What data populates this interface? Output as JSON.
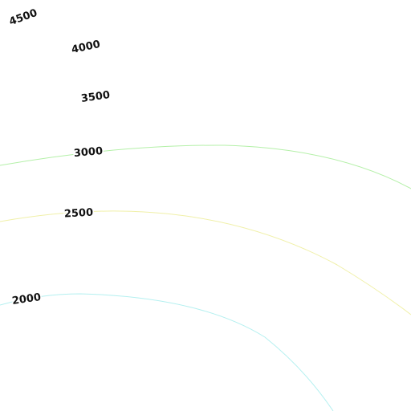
{
  "contours": [
    {
      "label": 4500
    },
    {
      "label": 4000
    },
    {
      "label": 3500
    },
    {
      "label": 3000,
      "color": "#b4f0a8"
    },
    {
      "label": 2500,
      "color": "#f0f0a8"
    },
    {
      "label": 2000,
      "color": "#b4f0f0"
    }
  ]
}
